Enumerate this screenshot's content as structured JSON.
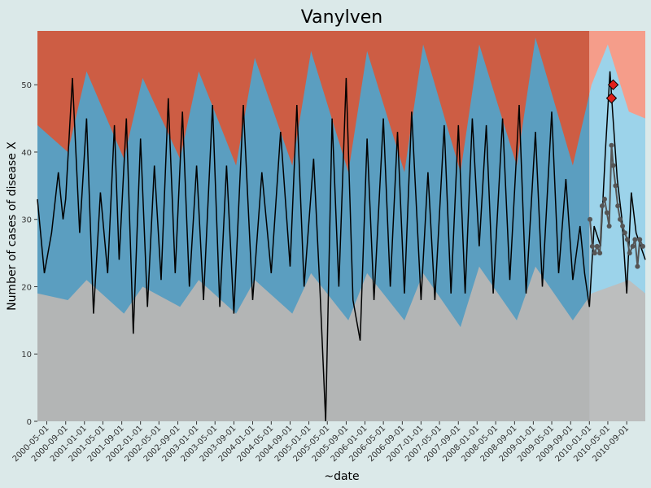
{
  "chart_data": {
    "type": "line",
    "title": "Vanylven",
    "xlabel": "~date",
    "ylabel": "Number of cases of disease X",
    "xlim": [
      "2000-03-01",
      "2010-12-31"
    ],
    "ylim": [
      0,
      58
    ],
    "y_ticks": [
      0,
      10,
      20,
      30,
      40,
      50
    ],
    "x_ticks": [
      "2000-05-01",
      "2000-09-01",
      "2001-01-01",
      "2001-05-01",
      "2001-09-01",
      "2002-01-01",
      "2002-05-01",
      "2002-09-01",
      "2003-01-01",
      "2003-05-01",
      "2003-09-01",
      "2004-01-01",
      "2004-05-01",
      "2004-09-01",
      "2005-01-01",
      "2005-05-01",
      "2005-09-01",
      "2006-01-01",
      "2006-05-01",
      "2006-09-01",
      "2007-01-01",
      "2007-05-01",
      "2007-09-01",
      "2008-01-01",
      "2008-05-01",
      "2008-09-01",
      "2009-01-01",
      "2009-05-01",
      "2009-09-01",
      "2010-01-01",
      "2010-05-01",
      "2010-09-01"
    ],
    "grid": false,
    "colors": {
      "background": "#dbe9e9",
      "lower_band": "#b3b5b5",
      "normal_band": "#5b9ec0",
      "upper_band": "#cd5d44",
      "forecast_lower_band": "#b3b5b5",
      "forecast_normal_band": "#8fcde8",
      "forecast_upper_band": "#f4907a",
      "forecast_shade": "#ffffff",
      "observed_line": "#000000",
      "forecast_points": "#555555",
      "outbreak_marker": "#e0201a"
    },
    "forecast_start": "2010-01-01",
    "lower_threshold_series": [
      {
        "date": "2000-03-01",
        "value": 19
      },
      {
        "date": "2000-09-15",
        "value": 18
      },
      {
        "date": "2001-01-15",
        "value": 21
      },
      {
        "date": "2001-09-15",
        "value": 16
      },
      {
        "date": "2002-01-15",
        "value": 20
      },
      {
        "date": "2002-09-15",
        "value": 17
      },
      {
        "date": "2003-01-15",
        "value": 21
      },
      {
        "date": "2003-09-15",
        "value": 16
      },
      {
        "date": "2004-01-15",
        "value": 21
      },
      {
        "date": "2004-09-15",
        "value": 16
      },
      {
        "date": "2005-01-15",
        "value": 22
      },
      {
        "date": "2005-09-15",
        "value": 15
      },
      {
        "date": "2006-01-15",
        "value": 22
      },
      {
        "date": "2006-09-15",
        "value": 15
      },
      {
        "date": "2007-01-15",
        "value": 22
      },
      {
        "date": "2007-09-15",
        "value": 14
      },
      {
        "date": "2008-01-15",
        "value": 23
      },
      {
        "date": "2008-09-15",
        "value": 15
      },
      {
        "date": "2009-01-15",
        "value": 23
      },
      {
        "date": "2009-09-15",
        "value": 15
      },
      {
        "date": "2010-01-15",
        "value": 19
      },
      {
        "date": "2010-09-15",
        "value": 21
      },
      {
        "date": "2010-12-31",
        "value": 19
      }
    ],
    "upper_threshold_series": [
      {
        "date": "2000-03-01",
        "value": 44
      },
      {
        "date": "2000-09-15",
        "value": 40
      },
      {
        "date": "2001-01-15",
        "value": 52
      },
      {
        "date": "2001-09-15",
        "value": 39
      },
      {
        "date": "2002-01-15",
        "value": 51
      },
      {
        "date": "2002-09-15",
        "value": 39
      },
      {
        "date": "2003-01-15",
        "value": 52
      },
      {
        "date": "2003-09-15",
        "value": 38
      },
      {
        "date": "2004-01-15",
        "value": 54
      },
      {
        "date": "2004-09-15",
        "value": 38
      },
      {
        "date": "2005-01-15",
        "value": 55
      },
      {
        "date": "2005-09-15",
        "value": 37
      },
      {
        "date": "2006-01-15",
        "value": 55
      },
      {
        "date": "2006-09-15",
        "value": 37
      },
      {
        "date": "2007-01-15",
        "value": 56
      },
      {
        "date": "2007-09-15",
        "value": 37
      },
      {
        "date": "2008-01-15",
        "value": 56
      },
      {
        "date": "2008-09-15",
        "value": 38
      },
      {
        "date": "2009-01-15",
        "value": 57
      },
      {
        "date": "2009-09-15",
        "value": 38
      },
      {
        "date": "2010-01-15",
        "value": 50
      },
      {
        "date": "2010-05-01",
        "value": 56
      },
      {
        "date": "2010-09-15",
        "value": 46
      },
      {
        "date": "2010-12-31",
        "value": 45
      }
    ],
    "observed_series": [
      {
        "date": "2000-03-01",
        "value": 33
      },
      {
        "date": "2000-04-15",
        "value": 22
      },
      {
        "date": "2000-06-01",
        "value": 28
      },
      {
        "date": "2000-07-15",
        "value": 37
      },
      {
        "date": "2000-08-15",
        "value": 30
      },
      {
        "date": "2000-09-01",
        "value": 33
      },
      {
        "date": "2000-10-15",
        "value": 51
      },
      {
        "date": "2000-12-01",
        "value": 28
      },
      {
        "date": "2001-01-15",
        "value": 45
      },
      {
        "date": "2001-03-01",
        "value": 16
      },
      {
        "date": "2001-04-15",
        "value": 34
      },
      {
        "date": "2001-06-01",
        "value": 22
      },
      {
        "date": "2001-07-15",
        "value": 44
      },
      {
        "date": "2001-08-15",
        "value": 24
      },
      {
        "date": "2001-10-01",
        "value": 45
      },
      {
        "date": "2001-11-15",
        "value": 13
      },
      {
        "date": "2002-01-01",
        "value": 42
      },
      {
        "date": "2002-02-15",
        "value": 17
      },
      {
        "date": "2002-04-01",
        "value": 38
      },
      {
        "date": "2002-05-15",
        "value": 21
      },
      {
        "date": "2002-07-01",
        "value": 48
      },
      {
        "date": "2002-08-15",
        "value": 22
      },
      {
        "date": "2002-10-01",
        "value": 46
      },
      {
        "date": "2002-11-15",
        "value": 20
      },
      {
        "date": "2003-01-01",
        "value": 38
      },
      {
        "date": "2003-02-15",
        "value": 18
      },
      {
        "date": "2003-04-15",
        "value": 47
      },
      {
        "date": "2003-06-01",
        "value": 17
      },
      {
        "date": "2003-07-15",
        "value": 38
      },
      {
        "date": "2003-09-01",
        "value": 16
      },
      {
        "date": "2003-11-01",
        "value": 47
      },
      {
        "date": "2004-01-01",
        "value": 18
      },
      {
        "date": "2004-03-01",
        "value": 37
      },
      {
        "date": "2004-05-01",
        "value": 22
      },
      {
        "date": "2004-07-01",
        "value": 43
      },
      {
        "date": "2004-09-01",
        "value": 23
      },
      {
        "date": "2004-10-15",
        "value": 47
      },
      {
        "date": "2004-12-01",
        "value": 20
      },
      {
        "date": "2005-02-01",
        "value": 39
      },
      {
        "date": "2005-03-15",
        "value": 19
      },
      {
        "date": "2005-04-20",
        "value": 0
      },
      {
        "date": "2005-06-01",
        "value": 45
      },
      {
        "date": "2005-07-15",
        "value": 20
      },
      {
        "date": "2005-09-01",
        "value": 51
      },
      {
        "date": "2005-10-15",
        "value": 18
      },
      {
        "date": "2005-12-01",
        "value": 12
      },
      {
        "date": "2006-01-15",
        "value": 42
      },
      {
        "date": "2006-03-01",
        "value": 18
      },
      {
        "date": "2006-05-01",
        "value": 45
      },
      {
        "date": "2006-06-15",
        "value": 20
      },
      {
        "date": "2006-08-01",
        "value": 43
      },
      {
        "date": "2006-09-15",
        "value": 19
      },
      {
        "date": "2006-11-01",
        "value": 46
      },
      {
        "date": "2007-01-01",
        "value": 18
      },
      {
        "date": "2007-02-15",
        "value": 37
      },
      {
        "date": "2007-04-01",
        "value": 18
      },
      {
        "date": "2007-06-01",
        "value": 44
      },
      {
        "date": "2007-07-15",
        "value": 19
      },
      {
        "date": "2007-09-01",
        "value": 44
      },
      {
        "date": "2007-10-15",
        "value": 19
      },
      {
        "date": "2007-12-01",
        "value": 45
      },
      {
        "date": "2008-01-15",
        "value": 26
      },
      {
        "date": "2008-03-01",
        "value": 44
      },
      {
        "date": "2008-04-15",
        "value": 19
      },
      {
        "date": "2008-06-15",
        "value": 45
      },
      {
        "date": "2008-08-01",
        "value": 21
      },
      {
        "date": "2008-10-01",
        "value": 47
      },
      {
        "date": "2008-11-15",
        "value": 19
      },
      {
        "date": "2009-01-15",
        "value": 43
      },
      {
        "date": "2009-03-01",
        "value": 20
      },
      {
        "date": "2009-05-01",
        "value": 46
      },
      {
        "date": "2009-06-15",
        "value": 22
      },
      {
        "date": "2009-08-01",
        "value": 36
      },
      {
        "date": "2009-09-15",
        "value": 21
      },
      {
        "date": "2009-11-01",
        "value": 29
      },
      {
        "date": "2009-12-01",
        "value": 22
      },
      {
        "date": "2010-01-01",
        "value": 17
      },
      {
        "date": "2010-02-01",
        "value": 29
      },
      {
        "date": "2010-03-15",
        "value": 26
      },
      {
        "date": "2010-04-15",
        "value": 40
      },
      {
        "date": "2010-05-15",
        "value": 52
      },
      {
        "date": "2010-06-01",
        "value": 46
      },
      {
        "date": "2010-07-01",
        "value": 36
      },
      {
        "date": "2010-08-01",
        "value": 30
      },
      {
        "date": "2010-09-01",
        "value": 19
      },
      {
        "date": "2010-10-01",
        "value": 34
      },
      {
        "date": "2010-11-01",
        "value": 28
      },
      {
        "date": "2010-12-31",
        "value": 24
      }
    ],
    "forecast_series": [
      {
        "date": "2010-01-05",
        "value": 30
      },
      {
        "date": "2010-01-20",
        "value": 26
      },
      {
        "date": "2010-02-05",
        "value": 25
      },
      {
        "date": "2010-02-20",
        "value": 26
      },
      {
        "date": "2010-03-10",
        "value": 25
      },
      {
        "date": "2010-03-25",
        "value": 32
      },
      {
        "date": "2010-04-10",
        "value": 33
      },
      {
        "date": "2010-04-25",
        "value": 31
      },
      {
        "date": "2010-05-10",
        "value": 29
      },
      {
        "date": "2010-05-25",
        "value": 41
      },
      {
        "date": "2010-06-05",
        "value": 38
      },
      {
        "date": "2010-06-20",
        "value": 35
      },
      {
        "date": "2010-07-05",
        "value": 32
      },
      {
        "date": "2010-07-20",
        "value": 30
      },
      {
        "date": "2010-08-05",
        "value": 29
      },
      {
        "date": "2010-08-20",
        "value": 28
      },
      {
        "date": "2010-09-05",
        "value": 27
      },
      {
        "date": "2010-09-20",
        "value": 25
      },
      {
        "date": "2010-10-10",
        "value": 26
      },
      {
        "date": "2010-10-25",
        "value": 27
      },
      {
        "date": "2010-11-10",
        "value": 23
      },
      {
        "date": "2010-11-25",
        "value": 27
      },
      {
        "date": "2010-12-15",
        "value": 26
      }
    ],
    "outbreak_markers": [
      {
        "date": "2010-05-25",
        "value": 48
      },
      {
        "date": "2010-06-05",
        "value": 50
      }
    ]
  }
}
